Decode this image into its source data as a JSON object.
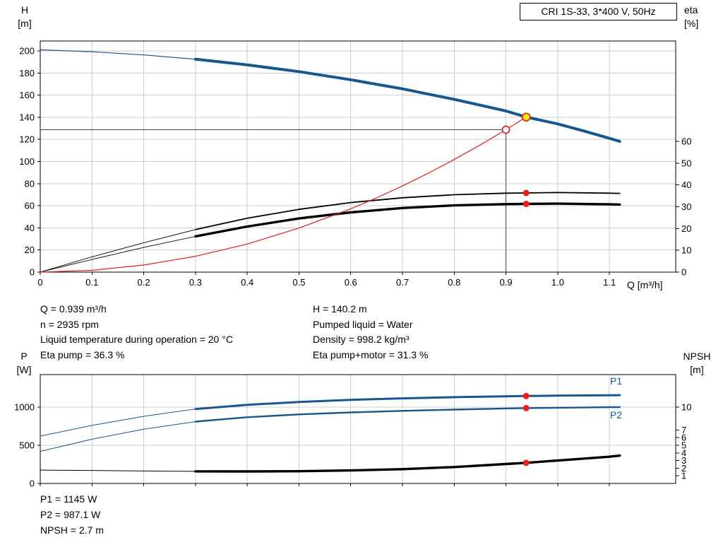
{
  "title_box": {
    "text": "CRI 1S-33, 3*400 V, 50Hz"
  },
  "axis_labels": {
    "h": [
      "H",
      "[m]"
    ],
    "eta": [
      "eta",
      "[%]"
    ],
    "q": "Q [m³/h]",
    "p": [
      "P",
      "[W]"
    ],
    "npsh": [
      "NPSH",
      "[m]"
    ]
  },
  "curve_labels": {
    "p1": "P1",
    "p2": "P2"
  },
  "operating_point_info": {
    "left": [
      "Q = 0.939 m³/h",
      "n = 2935 rpm",
      "Liquid temperature during operation = 20 °C",
      "Eta pump = 36.3 %"
    ],
    "right": [
      "H = 140.2 m",
      "Pumped liquid = Water",
      "Density = 998.2 kg/m³",
      "Eta pump+motor = 31.3 %"
    ]
  },
  "power_info": [
    "P1 = 1145 W",
    "P2 = 987.1 W",
    "NPSH = 2.7 m"
  ],
  "chart_data": [
    {
      "type": "line",
      "title": "CRI 1S-33, 3*400 V, 50Hz",
      "xlabel": "Q [m³/h]",
      "ylabel_left": "H [m]",
      "ylabel_right": "eta [%]",
      "grid": true,
      "legend_position": "none",
      "xlim": [
        0,
        1.228
      ],
      "ylim_left": [
        0,
        209
      ],
      "ylim_right": [
        0,
        106
      ],
      "x_ticks": [
        0,
        0.1,
        0.2,
        0.3,
        0.4,
        0.5,
        0.6,
        0.7,
        0.8,
        0.9,
        1.0,
        1.1
      ],
      "x_tick_labels": [
        "0",
        "0.1",
        "0.2",
        "0.3",
        "0.4",
        "0.5",
        "0.6",
        "0.7",
        "0.8",
        "0.9",
        "1.0",
        "1.1"
      ],
      "y_ticks_left": [
        0,
        20,
        40,
        60,
        80,
        100,
        120,
        140,
        160,
        180,
        200
      ],
      "y_ticks_right": [
        0,
        10,
        20,
        30,
        40,
        50,
        60
      ],
      "grid_color": "#cccccc",
      "frame_color": "#000000",
      "ref_color": "#404040",
      "series": [
        {
          "name": "head-curve",
          "label": "H(Q) pump curve",
          "color": "#17568f",
          "yaxis": "left",
          "split_x": 0.3,
          "w_thin": 1.2,
          "w_thick": 4,
          "x": [
            0,
            0.1,
            0.2,
            0.3,
            0.4,
            0.5,
            0.6,
            0.7,
            0.8,
            0.9,
            0.939,
            1.0,
            1.05,
            1.1,
            1.12
          ],
          "y": [
            201,
            199.3,
            196.4,
            192.5,
            187.4,
            181.3,
            174.0,
            165.7,
            156.2,
            145.7,
            140.2,
            134.0,
            127.7,
            121.0,
            118.2
          ]
        },
        {
          "name": "eta-pump-curve",
          "label": "Eta pump",
          "color": "#000000",
          "yaxis": "right",
          "split_x": 0.3,
          "w_thin": 0.9,
          "w_thick": 1.8,
          "x": [
            0,
            0.1,
            0.2,
            0.3,
            0.4,
            0.5,
            0.6,
            0.7,
            0.8,
            0.9,
            0.939,
            1.0,
            1.1,
            1.12
          ],
          "y": [
            0,
            7.0,
            13.5,
            19.5,
            24.7,
            28.8,
            31.9,
            34.1,
            35.5,
            36.2,
            36.3,
            36.5,
            36.2,
            36.1
          ]
        },
        {
          "name": "eta-pump-motor-curve",
          "label": "Eta pump+motor",
          "color": "#000000",
          "yaxis": "right",
          "split_x": 0.3,
          "w_thin": 0.9,
          "w_thick": 3.4,
          "x": [
            0,
            0.1,
            0.2,
            0.3,
            0.4,
            0.5,
            0.6,
            0.7,
            0.8,
            0.9,
            0.939,
            1.0,
            1.1,
            1.12
          ],
          "y": [
            0,
            5.8,
            11.3,
            16.4,
            20.9,
            24.6,
            27.4,
            29.4,
            30.6,
            31.2,
            31.3,
            31.4,
            31.1,
            31.0
          ]
        },
        {
          "name": "system-curve",
          "label": "System resistance curve",
          "color": "#e02020",
          "yaxis": "left",
          "w_thin": 1.2,
          "x": [
            0,
            0.1,
            0.2,
            0.3,
            0.4,
            0.5,
            0.6,
            0.65,
            0.7,
            0.75,
            0.8,
            0.85,
            0.9,
            0.939
          ],
          "y": [
            0,
            1.6,
            6.4,
            14.3,
            25.4,
            39.8,
            57.2,
            67.2,
            77.9,
            89.4,
            101.8,
            114.9,
            128.8,
            140.2
          ]
        }
      ],
      "ref_lines": [
        {
          "x1": 0,
          "y1": 128.8,
          "x2": 0.9,
          "y2": 128.8,
          "yaxis": "left"
        },
        {
          "x1": 0.9,
          "y1": 0,
          "x2": 0.9,
          "y2": 128.8,
          "yaxis": "left"
        }
      ],
      "markers": [
        {
          "name": "duty-point-marker",
          "shape": "ring",
          "x": 0.9,
          "y": 128.8,
          "yaxis": "left",
          "r": 5,
          "stroke": "#e02020",
          "fill": "#ffffff"
        },
        {
          "name": "operating-point-marker",
          "shape": "ring",
          "x": 0.939,
          "y": 140.2,
          "yaxis": "left",
          "r": 5.5,
          "stroke": "#e02020",
          "fill": "#ffe600"
        },
        {
          "name": "eta-pump-point",
          "shape": "dot",
          "x": 0.939,
          "y": 36.3,
          "yaxis": "right",
          "r": 4.5,
          "fill": "#e8201c"
        },
        {
          "name": "eta-pump-motor-point",
          "shape": "dot",
          "x": 0.939,
          "y": 31.3,
          "yaxis": "right",
          "r": 4.5,
          "fill": "#e8201c"
        }
      ]
    },
    {
      "type": "line",
      "title": "",
      "xlabel": "",
      "ylabel_left": "P [W]",
      "ylabel_right": "NPSH [m]",
      "grid": true,
      "legend_position": "inline",
      "xlim": [
        0,
        1.228
      ],
      "ylim_left": [
        0,
        1426
      ],
      "ylim_right": [
        0,
        14.26
      ],
      "x_ticks": [
        0,
        0.1,
        0.2,
        0.3,
        0.4,
        0.5,
        0.6,
        0.7,
        0.8,
        0.9,
        1.0,
        1.1
      ],
      "y_ticks_left": [
        0,
        500,
        1000
      ],
      "y_ticks_right": [
        1,
        2,
        3,
        4,
        5,
        6,
        7,
        10
      ],
      "right_tick_small": true,
      "grid_color": "#cccccc",
      "frame_color": "#000000",
      "ref_color": "#404040",
      "series": [
        {
          "name": "p1-curve",
          "label": "P1",
          "color": "#17568f",
          "yaxis": "left",
          "split_x": 0.3,
          "w_thin": 1,
          "w_thick": 3,
          "x": [
            0,
            0.1,
            0.2,
            0.3,
            0.4,
            0.5,
            0.6,
            0.7,
            0.8,
            0.9,
            0.939,
            1.0,
            1.1,
            1.12
          ],
          "y": [
            620,
            760,
            880,
            975,
            1030,
            1068,
            1095,
            1115,
            1131,
            1142,
            1145,
            1150,
            1156,
            1157
          ]
        },
        {
          "name": "p2-curve",
          "label": "P2",
          "color": "#17568f",
          "yaxis": "left",
          "split_x": 0.3,
          "w_thin": 1,
          "w_thick": 2.4,
          "x": [
            0,
            0.1,
            0.2,
            0.3,
            0.4,
            0.5,
            0.6,
            0.7,
            0.8,
            0.9,
            0.939,
            1.0,
            1.1,
            1.12
          ],
          "y": [
            420,
            580,
            710,
            810,
            868,
            905,
            931,
            951,
            968,
            982,
            987.1,
            992,
            999,
            1000
          ]
        },
        {
          "name": "npsh-curve",
          "label": "NPSH",
          "color": "#000000",
          "yaxis": "right",
          "split_x": 0.3,
          "w_thin": 1,
          "w_thick": 3.4,
          "x": [
            0,
            0.1,
            0.2,
            0.3,
            0.4,
            0.5,
            0.6,
            0.7,
            0.8,
            0.9,
            0.939,
            1.0,
            1.1,
            1.12
          ],
          "y": [
            1.75,
            1.7,
            1.63,
            1.58,
            1.57,
            1.6,
            1.7,
            1.87,
            2.15,
            2.55,
            2.7,
            3.0,
            3.5,
            3.65
          ]
        }
      ],
      "markers": [
        {
          "name": "p1-point",
          "shape": "dot",
          "x": 0.939,
          "y": 1145,
          "yaxis": "left",
          "r": 4.5,
          "fill": "#e8201c"
        },
        {
          "name": "p2-point",
          "shape": "dot",
          "x": 0.939,
          "y": 987.1,
          "yaxis": "left",
          "r": 4.5,
          "fill": "#e8201c"
        },
        {
          "name": "npsh-point",
          "shape": "dot",
          "x": 0.939,
          "y": 2.7,
          "yaxis": "right",
          "r": 4.5,
          "fill": "#e8201c"
        }
      ]
    }
  ]
}
